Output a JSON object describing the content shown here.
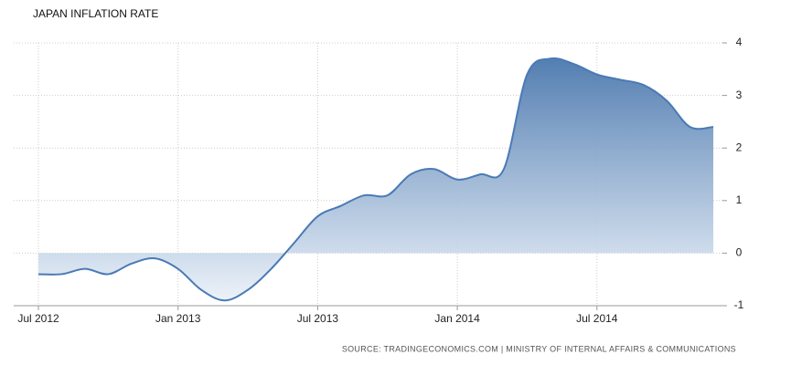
{
  "chart_data": {
    "type": "area",
    "title": "JAPAN INFLATION RATE",
    "source": "SOURCE: TRADINGECONOMICS.COM | MINISTRY OF INTERNAL AFFAIRS & COMMUNICATIONS",
    "categories": [
      "Jul 2012",
      null,
      null,
      null,
      null,
      null,
      "Jan 2013",
      null,
      null,
      null,
      null,
      null,
      "Jul 2013",
      null,
      null,
      null,
      null,
      null,
      "Jan 2014",
      null,
      null,
      null,
      null,
      null,
      "Jul 2014",
      null,
      null,
      null,
      null,
      null
    ],
    "series": [
      {
        "color": "#4a7ab5",
        "values": [
          -0.4,
          -0.4,
          -0.3,
          -0.4,
          -0.2,
          -0.1,
          -0.3,
          -0.7,
          -0.9,
          -0.7,
          -0.3,
          0.2,
          0.7,
          0.9,
          1.1,
          1.1,
          1.5,
          1.6,
          1.4,
          1.5,
          1.6,
          3.4,
          3.7,
          3.6,
          3.4,
          3.3,
          3.2,
          2.9,
          2.4,
          2.4
        ]
      }
    ],
    "ylim": [
      -1,
      4
    ],
    "yticks": [
      -1,
      0,
      1,
      2,
      3,
      4
    ],
    "grid": true
  }
}
